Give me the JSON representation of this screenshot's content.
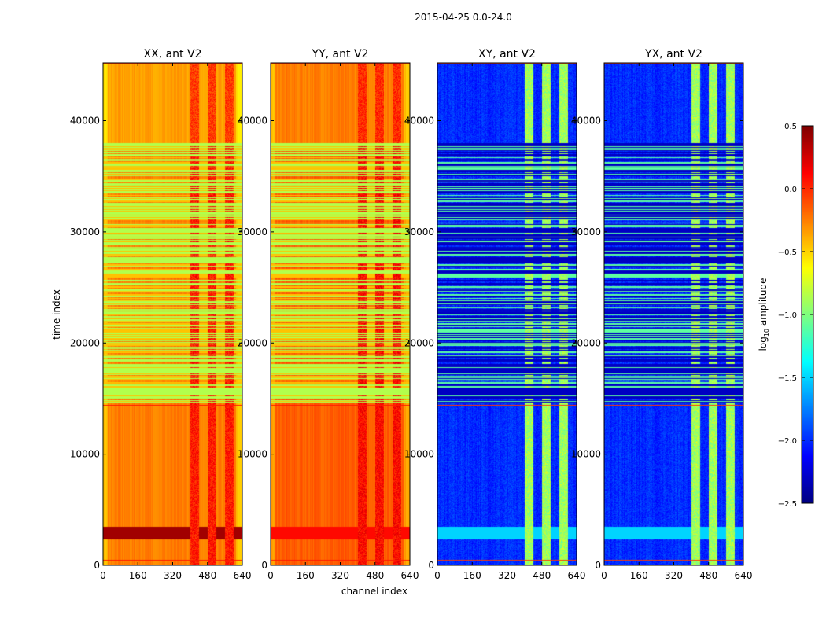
{
  "chart_data": {
    "type": "heatmap",
    "title": "2015-04-25 0.0-24.0",
    "xlabel": "channel index",
    "ylabel": "time index",
    "xlim": [
      0,
      640
    ],
    "ylim": [
      0,
      45200
    ],
    "xticks": [
      "0",
      "160",
      "320",
      "480",
      "640"
    ],
    "yticks": [
      "0",
      "10000",
      "20000",
      "30000",
      "40000"
    ],
    "colorbar": {
      "label": "log10 amplitude",
      "label_main": "log",
      "label_sub": "10",
      "label_rest": " amplitude",
      "colormap": "jet",
      "range": [
        -2.5,
        0.5
      ],
      "ticks": [
        "0.5",
        "0.0",
        "−0.5",
        "−1.0",
        "−1.5",
        "−2.0",
        "−2.5"
      ]
    },
    "panels": [
      {
        "title": "XX, ant V2",
        "base": -0.25,
        "flag_band": -0.85,
        "rfi": 0.05,
        "low_band": 0.4
      },
      {
        "title": "YY, ant V2",
        "base": -0.15,
        "flag_band": -0.85,
        "rfi": 0.1,
        "low_band": 0.1
      },
      {
        "title": "XY, ant V2",
        "base": -2.0,
        "flag_band": -2.3,
        "rfi": -0.9,
        "low_band": -1.5
      },
      {
        "title": "YX, ant V2",
        "base": -2.0,
        "flag_band": -2.3,
        "rfi": -0.9,
        "low_band": -1.5
      }
    ],
    "rfi_channel_range": [
      400,
      620
    ],
    "flagged_time_range": [
      14700,
      38000
    ]
  }
}
